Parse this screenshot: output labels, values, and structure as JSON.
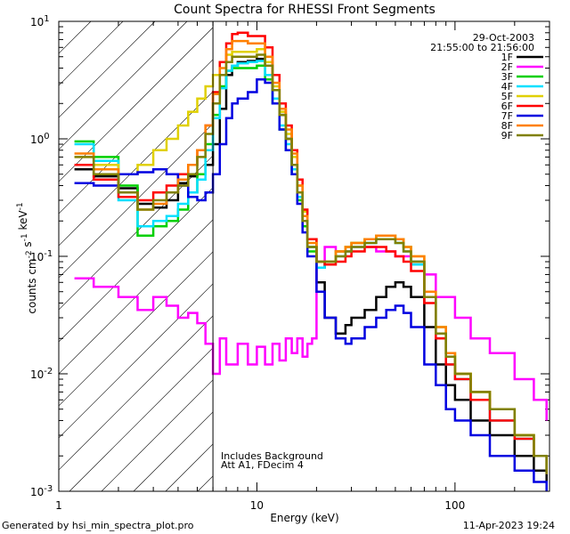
{
  "chart_data": {
    "type": "line",
    "title": "Count Spectra for RHESSI Front Segments",
    "xlabel": "Energy (keV)",
    "ylabel": "counts cm-2 s-1 keV-1",
    "xscale": "log",
    "yscale": "log",
    "xlim": [
      1,
      300
    ],
    "ylim": [
      0.001,
      10
    ],
    "x_tick_labels": [
      "1",
      "10",
      "100"
    ],
    "y_tick_labels": [
      "10^1",
      "10^0",
      "10^-1",
      "10^-2",
      "10^-3"
    ],
    "date": "29-Oct-2003",
    "time_range": "21:55:00 to 21:56:00",
    "annotation_lines": [
      "Includes Background",
      "Att A1, FDecim 4"
    ],
    "threshold_energy": 6,
    "footer_left": "Generated by hsi_min_spectra_plot.pro",
    "footer_right": "11-Apr-2023 19:24",
    "series": [
      {
        "name": "1F",
        "color": "#000000",
        "x": [
          1.2,
          1.5,
          2,
          2.5,
          3,
          3.5,
          4,
          4.5,
          5,
          5.5,
          6,
          6.5,
          7,
          7.5,
          8,
          9,
          10,
          11,
          12,
          13,
          14,
          15,
          16,
          17,
          18,
          20,
          22,
          25,
          28,
          30,
          35,
          40,
          45,
          50,
          55,
          60,
          70,
          80,
          90,
          100,
          120,
          150,
          200,
          250,
          290
        ],
        "y": [
          0.55,
          0.48,
          0.38,
          0.28,
          0.26,
          0.3,
          0.42,
          0.48,
          0.5,
          0.6,
          0.9,
          1.8,
          3.5,
          4.2,
          4.5,
          4.6,
          4.8,
          4.2,
          2.6,
          1.6,
          1.0,
          0.6,
          0.35,
          0.2,
          0.12,
          0.06,
          0.03,
          0.022,
          0.026,
          0.03,
          0.035,
          0.045,
          0.055,
          0.06,
          0.055,
          0.045,
          0.025,
          0.012,
          0.008,
          0.006,
          0.004,
          0.003,
          0.002,
          0.0015,
          0.0012
        ]
      },
      {
        "name": "2F",
        "color": "#ff00ff",
        "x": [
          1.2,
          1.5,
          2,
          2.5,
          3,
          3.5,
          4,
          4.5,
          5,
          5.5,
          6,
          6.5,
          7,
          8,
          9,
          10,
          11,
          12,
          13,
          14,
          15,
          16,
          17,
          18,
          19,
          20,
          22,
          25,
          30,
          40,
          50,
          60,
          70,
          80,
          100,
          120,
          150,
          200,
          250,
          290
        ],
        "y": [
          0.065,
          0.055,
          0.045,
          0.035,
          0.045,
          0.038,
          0.03,
          0.033,
          0.027,
          0.018,
          0.01,
          0.02,
          0.012,
          0.018,
          0.012,
          0.017,
          0.012,
          0.018,
          0.013,
          0.02,
          0.015,
          0.02,
          0.014,
          0.018,
          0.02,
          0.08,
          0.12,
          0.11,
          0.12,
          0.11,
          0.1,
          0.09,
          0.07,
          0.045,
          0.03,
          0.02,
          0.015,
          0.009,
          0.006,
          0.004
        ]
      },
      {
        "name": "3F",
        "color": "#00d000",
        "x": [
          1.2,
          1.5,
          2,
          2.5,
          3,
          3.5,
          4,
          4.5,
          5,
          5.5,
          6,
          6.5,
          7,
          7.5,
          8,
          9,
          10,
          11,
          12,
          13,
          14,
          15,
          16,
          17,
          18,
          20,
          22,
          25,
          28,
          30,
          35,
          40,
          45,
          50,
          55,
          60,
          70,
          80,
          90,
          100,
          120,
          150,
          200,
          250,
          290
        ],
        "y": [
          0.95,
          0.7,
          0.4,
          0.15,
          0.18,
          0.2,
          0.25,
          0.35,
          0.5,
          0.9,
          1.6,
          2.8,
          3.8,
          4.0,
          4.0,
          4.0,
          4.2,
          3.2,
          2.0,
          1.2,
          0.8,
          0.5,
          0.3,
          0.18,
          0.11,
          0.08,
          0.09,
          0.11,
          0.12,
          0.13,
          0.14,
          0.15,
          0.15,
          0.14,
          0.12,
          0.09,
          0.05,
          0.025,
          0.015,
          0.01,
          0.007,
          0.005,
          0.003,
          0.002,
          0.0015
        ]
      },
      {
        "name": "4F",
        "color": "#00e0ff",
        "x": [
          1.2,
          1.5,
          2,
          2.5,
          3,
          3.5,
          4,
          4.5,
          5,
          5.5,
          6,
          6.5,
          7,
          7.5,
          8,
          9,
          10,
          11,
          12,
          13,
          14,
          15,
          16,
          17,
          18,
          20,
          22,
          25,
          28,
          30,
          35,
          40,
          45,
          50,
          55,
          60,
          70,
          80,
          90,
          100,
          120,
          150,
          200,
          250,
          290
        ],
        "y": [
          0.9,
          0.65,
          0.3,
          0.18,
          0.2,
          0.22,
          0.28,
          0.35,
          0.45,
          0.8,
          1.5,
          2.7,
          3.8,
          4.2,
          4.4,
          4.5,
          4.6,
          3.5,
          2.2,
          1.3,
          0.9,
          0.55,
          0.32,
          0.2,
          0.12,
          0.08,
          0.09,
          0.1,
          0.11,
          0.12,
          0.13,
          0.14,
          0.14,
          0.13,
          0.11,
          0.085,
          0.045,
          0.02,
          0.012,
          0.009,
          0.006,
          0.004,
          0.0028,
          0.002,
          0.0014
        ]
      },
      {
        "name": "5F",
        "color": "#e0d000",
        "x": [
          1.2,
          1.5,
          2,
          2.5,
          3,
          3.5,
          4,
          4.5,
          5,
          5.5,
          6,
          6.5,
          7,
          7.5,
          8,
          9,
          10,
          11,
          12,
          13,
          14,
          15,
          16,
          17,
          18,
          20,
          22,
          25,
          28,
          30,
          35,
          40,
          45,
          50,
          55,
          60,
          70,
          80,
          90,
          100,
          120,
          150,
          200,
          250,
          290
        ],
        "y": [
          0.7,
          0.6,
          0.5,
          0.6,
          0.8,
          1.0,
          1.3,
          1.7,
          2.2,
          2.8,
          3.5,
          4.5,
          5.2,
          5.5,
          5.5,
          5.5,
          5.8,
          4.5,
          2.8,
          1.7,
          1.1,
          0.7,
          0.4,
          0.24,
          0.14,
          0.09,
          0.09,
          0.11,
          0.12,
          0.13,
          0.14,
          0.15,
          0.15,
          0.14,
          0.12,
          0.1,
          0.05,
          0.025,
          0.015,
          0.01,
          0.007,
          0.005,
          0.003,
          0.002,
          0.0015
        ]
      },
      {
        "name": "6F",
        "color": "#ff0000",
        "x": [
          1.2,
          1.5,
          2,
          2.5,
          3,
          3.5,
          4,
          4.5,
          5,
          5.5,
          6,
          6.5,
          7,
          7.5,
          8,
          9,
          10,
          11,
          12,
          13,
          14,
          15,
          16,
          17,
          18,
          20,
          22,
          25,
          28,
          30,
          35,
          40,
          45,
          50,
          55,
          60,
          70,
          80,
          90,
          100,
          120,
          150,
          200,
          250,
          290
        ],
        "y": [
          0.6,
          0.45,
          0.32,
          0.3,
          0.35,
          0.4,
          0.5,
          0.6,
          0.8,
          1.3,
          2.5,
          4.5,
          6.5,
          7.8,
          8.0,
          7.5,
          7.5,
          6.0,
          3.5,
          2.0,
          1.3,
          0.8,
          0.45,
          0.25,
          0.14,
          0.09,
          0.085,
          0.09,
          0.1,
          0.11,
          0.12,
          0.12,
          0.11,
          0.1,
          0.09,
          0.075,
          0.04,
          0.02,
          0.012,
          0.009,
          0.006,
          0.004,
          0.0028,
          0.002,
          0.0014
        ]
      },
      {
        "name": "7F",
        "color": "#0000e0",
        "x": [
          1.2,
          1.5,
          2,
          2.5,
          3,
          3.5,
          4,
          4.5,
          5,
          5.5,
          6,
          6.5,
          7,
          7.5,
          8,
          9,
          10,
          11,
          12,
          13,
          14,
          15,
          16,
          17,
          18,
          20,
          22,
          25,
          28,
          30,
          35,
          40,
          45,
          50,
          55,
          60,
          70,
          80,
          90,
          100,
          120,
          150,
          200,
          250,
          290
        ],
        "y": [
          0.42,
          0.4,
          0.5,
          0.52,
          0.55,
          0.5,
          0.4,
          0.32,
          0.3,
          0.35,
          0.5,
          0.9,
          1.5,
          2.0,
          2.2,
          2.5,
          3.2,
          3.0,
          2.0,
          1.2,
          0.8,
          0.5,
          0.28,
          0.16,
          0.1,
          0.05,
          0.03,
          0.02,
          0.018,
          0.02,
          0.025,
          0.03,
          0.035,
          0.038,
          0.033,
          0.025,
          0.012,
          0.008,
          0.005,
          0.004,
          0.003,
          0.002,
          0.0015,
          0.0012,
          0.001
        ]
      },
      {
        "name": "8F",
        "color": "#ff8000",
        "x": [
          1.2,
          1.5,
          2,
          2.5,
          3,
          3.5,
          4,
          4.5,
          5,
          5.5,
          6,
          6.5,
          7,
          7.5,
          8,
          9,
          10,
          11,
          12,
          13,
          14,
          15,
          16,
          17,
          18,
          20,
          22,
          25,
          28,
          30,
          35,
          40,
          45,
          50,
          55,
          60,
          70,
          80,
          90,
          100,
          120,
          150,
          200,
          250,
          290
        ],
        "y": [
          0.75,
          0.55,
          0.35,
          0.25,
          0.28,
          0.35,
          0.45,
          0.6,
          0.8,
          1.3,
          2.4,
          4.0,
          5.8,
          6.8,
          6.8,
          6.5,
          6.5,
          5.0,
          3.0,
          1.8,
          1.2,
          0.75,
          0.4,
          0.22,
          0.13,
          0.09,
          0.09,
          0.11,
          0.12,
          0.13,
          0.14,
          0.15,
          0.15,
          0.14,
          0.12,
          0.1,
          0.05,
          0.025,
          0.015,
          0.01,
          0.007,
          0.005,
          0.003,
          0.002,
          0.0015
        ]
      },
      {
        "name": "9F",
        "color": "#808000",
        "x": [
          1.2,
          1.5,
          2,
          2.5,
          3,
          3.5,
          4,
          4.5,
          5,
          5.5,
          6,
          6.5,
          7,
          7.5,
          8,
          9,
          10,
          11,
          12,
          13,
          14,
          15,
          16,
          17,
          18,
          20,
          22,
          25,
          28,
          30,
          35,
          40,
          45,
          50,
          55,
          60,
          70,
          80,
          90,
          100,
          120,
          150,
          200,
          250,
          290
        ],
        "y": [
          0.7,
          0.5,
          0.35,
          0.25,
          0.3,
          0.35,
          0.4,
          0.5,
          0.7,
          1.1,
          2.0,
          3.5,
          4.5,
          5.0,
          5.0,
          5.0,
          5.2,
          4.2,
          2.6,
          1.6,
          1.0,
          0.6,
          0.35,
          0.2,
          0.12,
          0.09,
          0.09,
          0.1,
          0.11,
          0.12,
          0.13,
          0.14,
          0.14,
          0.13,
          0.11,
          0.09,
          0.045,
          0.022,
          0.014,
          0.01,
          0.007,
          0.005,
          0.003,
          0.002,
          0.0014
        ]
      }
    ]
  }
}
